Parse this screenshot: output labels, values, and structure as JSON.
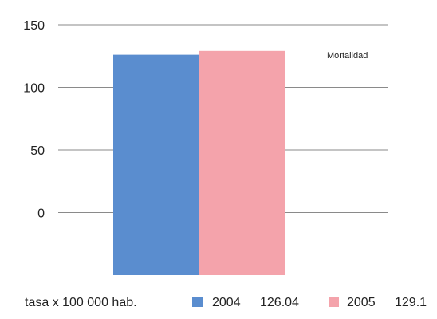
{
  "chart_data": {
    "type": "bar",
    "categories": [
      ""
    ],
    "series": [
      {
        "name": "2004",
        "values": [
          126.04
        ],
        "color": "#5a8dcf"
      },
      {
        "name": "2005",
        "values": [
          129.1
        ],
        "color": "#f4a3ab"
      }
    ],
    "y_ticks": [
      "150",
      "100",
      "50",
      "0"
    ],
    "ylim": [
      -50,
      150
    ],
    "grid": true,
    "annotation": "Mortalidad",
    "legend": {
      "position": "bottom",
      "prefix": "tasa x 100 000 hab.",
      "entries": [
        {
          "label": "2004",
          "value": "126.04"
        },
        {
          "label": "2005",
          "value": "129.1"
        }
      ]
    },
    "title": "",
    "xlabel": "",
    "ylabel": ""
  }
}
